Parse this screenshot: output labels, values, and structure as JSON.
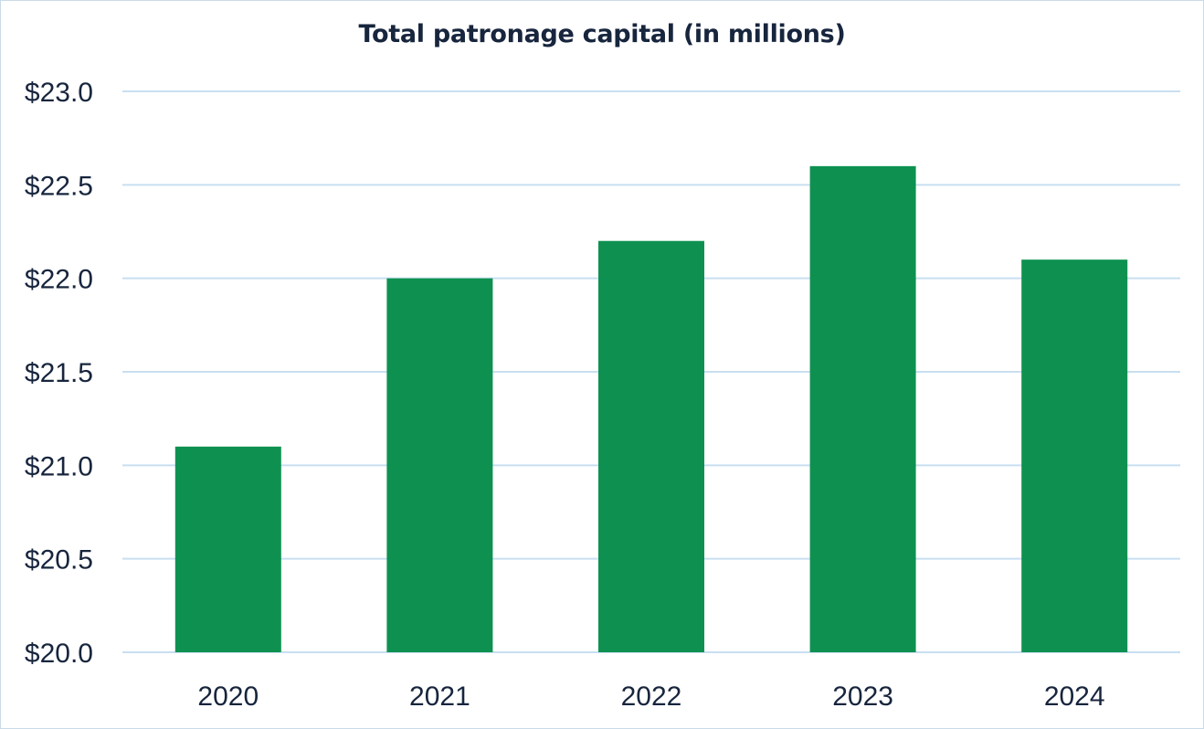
{
  "chart_data": {
    "type": "bar",
    "title": "Total patronage capital (in millions)",
    "categories": [
      "2020",
      "2021",
      "2022",
      "2023",
      "2024"
    ],
    "values": [
      21.1,
      22.0,
      22.2,
      22.6,
      22.1
    ],
    "ylim": [
      20.0,
      23.0
    ],
    "yticks": [
      20.0,
      20.5,
      21.0,
      21.5,
      22.0,
      22.5,
      23.0
    ],
    "ytick_labels": [
      "$20.0",
      "$20.5",
      "$21.0",
      "$21.5",
      "$22.0",
      "$22.5",
      "$23.0"
    ],
    "xlabel": "",
    "ylabel": "",
    "grid": true,
    "legend": "none",
    "colors": {
      "bar": "#0e9150",
      "grid": "#c8dff0",
      "text": "#17253d"
    }
  }
}
